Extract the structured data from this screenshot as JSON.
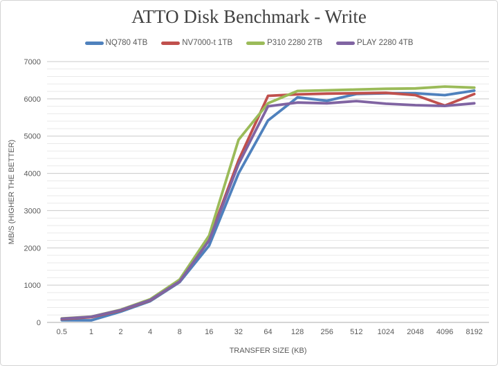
{
  "chart_data": {
    "type": "line",
    "title": "ATTO Disk Benchmark - Write",
    "xlabel": "TRANSFER SIZE (KB)",
    "ylabel": "MB/S (HIGHER THE BETTER)",
    "categories": [
      "0.5",
      "1",
      "2",
      "4",
      "8",
      "16",
      "32",
      "64",
      "128",
      "256",
      "512",
      "1024",
      "2048",
      "4096",
      "8192"
    ],
    "series": [
      {
        "name": "NQ780 4TB",
        "color": "#4F81BD",
        "values": [
          60,
          55,
          290,
          570,
          1080,
          2060,
          4000,
          5420,
          6040,
          5950,
          6130,
          6150,
          6150,
          6100,
          6220
        ]
      },
      {
        "name": "NV7000-t 1TB",
        "color": "#C0504D",
        "values": [
          90,
          140,
          320,
          590,
          1100,
          2230,
          4350,
          6080,
          6120,
          6140,
          6150,
          6160,
          6100,
          5820,
          6130
        ]
      },
      {
        "name": "P310 2280 2TB",
        "color": "#9BBB59",
        "values": [
          105,
          155,
          340,
          620,
          1150,
          2330,
          4900,
          5880,
          6210,
          6230,
          6250,
          6270,
          6280,
          6330,
          6300
        ]
      },
      {
        "name": "PLAY 2280 4TB",
        "color": "#8064A2",
        "values": [
          100,
          150,
          330,
          600,
          1100,
          2200,
          4250,
          5800,
          5900,
          5880,
          5940,
          5870,
          5830,
          5810,
          5880
        ]
      }
    ],
    "ylim": [
      0,
      7000
    ],
    "y_major_step": 1000,
    "y_minor_step": 200,
    "y_tick_labels": [
      "0",
      "1000",
      "2000",
      "3000",
      "4000",
      "5000",
      "6000",
      "7000"
    ],
    "grid": "horizontal major and minor, on",
    "legend_position": "top"
  },
  "theme": {
    "background": "#FFFFFF",
    "frame_border": "#D3D3D3",
    "title_text": "#404040",
    "axis_text": "#595959",
    "major_gridline": "#C9C9C9",
    "minor_gridline": "#E9E9E9",
    "axis_line": "#ABABAB"
  }
}
